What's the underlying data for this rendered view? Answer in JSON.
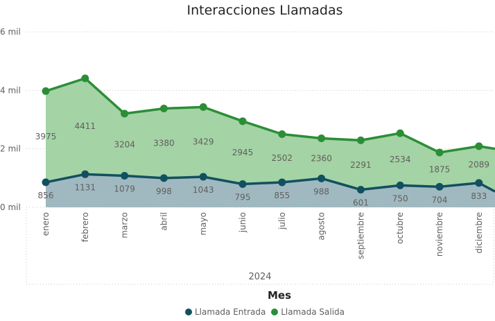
{
  "chart_data": {
    "type": "area",
    "title": "Interacciones Llamadas",
    "xlabel": "Mes",
    "year_label": "2024",
    "ylabel": "",
    "ylim": [
      0,
      6000
    ],
    "yticks": [
      0,
      2000,
      4000,
      6000
    ],
    "ytick_labels": [
      "0 mil",
      "2 mil",
      "4 mil",
      "6 mil"
    ],
    "categories": [
      "enero",
      "febrero",
      "marzo",
      "abril",
      "mayo",
      "junio",
      "julio",
      "agosto",
      "septiembre",
      "octubre",
      "noviembre",
      "diciembre"
    ],
    "series": [
      {
        "name": "Llamada Entrada",
        "color": "#12505f",
        "fill": "#a0b9c0",
        "values": [
          856,
          1131,
          1079,
          998,
          1043,
          795,
          855,
          988,
          601,
          750,
          704,
          833
        ]
      },
      {
        "name": "Llamada Salida",
        "color": "#2b8e37",
        "fill": "#a4d3a5",
        "values": [
          3975,
          4411,
          3204,
          3380,
          3429,
          2945,
          2502,
          2360,
          2291,
          2534,
          1875,
          2089
        ]
      }
    ],
    "legend": "bottom-center"
  }
}
